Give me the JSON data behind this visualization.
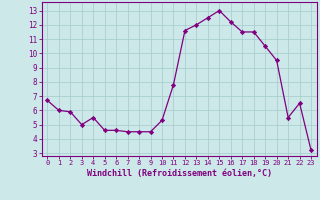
{
  "x": [
    0,
    1,
    2,
    3,
    4,
    5,
    6,
    7,
    8,
    9,
    10,
    11,
    12,
    13,
    14,
    15,
    16,
    17,
    18,
    19,
    20,
    21,
    22,
    23
  ],
  "y": [
    6.7,
    6.0,
    5.9,
    5.0,
    5.5,
    4.6,
    4.6,
    4.5,
    4.5,
    4.5,
    5.3,
    7.8,
    11.6,
    12.0,
    12.5,
    13.0,
    12.2,
    11.5,
    11.5,
    10.5,
    9.5,
    5.5,
    6.5,
    3.2
  ],
  "line_color": "#800080",
  "marker": "D",
  "marker_size": 2.2,
  "bg_color": "#cce8e8",
  "grid_color": "#aacece",
  "xlabel": "Windchill (Refroidissement éolien,°C)",
  "xlabel_color": "#800080",
  "ylabel_ticks": [
    3,
    4,
    5,
    6,
    7,
    8,
    9,
    10,
    11,
    12,
    13
  ],
  "xlim": [
    -0.5,
    23.5
  ],
  "ylim": [
    2.8,
    13.6
  ],
  "tick_color": "#800080",
  "axis_color": "#800080",
  "xtick_fontsize": 5.0,
  "ytick_fontsize": 5.5,
  "xlabel_fontsize": 6.0
}
